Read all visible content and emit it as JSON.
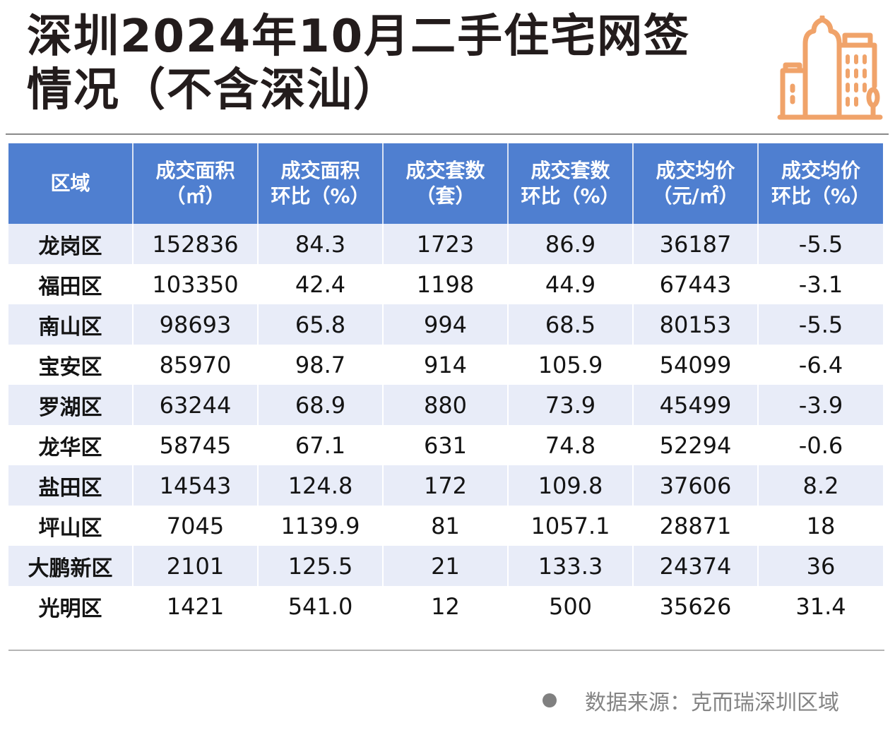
{
  "header": {
    "title_line1": "深圳2024年10月二手住宅网签",
    "title_line2": "情况（不含深汕）",
    "logo_icon": "city-buildings-icon",
    "logo_color": "#f0a36a"
  },
  "table": {
    "columns": [
      {
        "line1": "区域",
        "line2": ""
      },
      {
        "line1": "成交面积",
        "line2": "（㎡）"
      },
      {
        "line1": "成交面积",
        "line2": "环比（%）"
      },
      {
        "line1": "成交套数",
        "line2": "（套）"
      },
      {
        "line1": "成交套数",
        "line2": "环比（%）"
      },
      {
        "line1": "成交均价",
        "line2": "（元/㎡）"
      },
      {
        "line1": "成交均价",
        "line2": "环比（%）"
      }
    ],
    "rows": [
      [
        "龙岗区",
        "152836",
        "84.3",
        "1723",
        "86.9",
        "36187",
        "-5.5"
      ],
      [
        "福田区",
        "103350",
        "42.4",
        "1198",
        "44.9",
        "67443",
        "-3.1"
      ],
      [
        "南山区",
        "98693",
        "65.8",
        "994",
        "68.5",
        "80153",
        "-5.5"
      ],
      [
        "宝安区",
        "85970",
        "98.7",
        "914",
        "105.9",
        "54099",
        "-6.4"
      ],
      [
        "罗湖区",
        "63244",
        "68.9",
        "880",
        "73.9",
        "45499",
        "-3.9"
      ],
      [
        "龙华区",
        "58745",
        "67.1",
        "631",
        "74.8",
        "52294",
        "-0.6"
      ],
      [
        "盐田区",
        "14543",
        "124.8",
        "172",
        "109.8",
        "37606",
        "8.2"
      ],
      [
        "坪山区",
        "7045",
        "1139.9",
        "81",
        "1057.1",
        "28871",
        "18"
      ],
      [
        "大鹏新区",
        "2101",
        "125.5",
        "21",
        "133.3",
        "24374",
        "36"
      ],
      [
        "光明区",
        "1421",
        "541.0",
        "12",
        "500",
        "35626",
        "31.4"
      ]
    ],
    "header_color": "#4f7fd0",
    "stripe_color": "#e8ecf8"
  },
  "footer": {
    "source": "数据来源：克而瑞深圳区域"
  },
  "chart_data": {
    "type": "table",
    "title": "深圳2024年10月二手住宅网签情况（不含深汕）",
    "columns": [
      "区域",
      "成交面积（㎡）",
      "成交面积环比（%）",
      "成交套数（套）",
      "成交套数环比（%）",
      "成交均价（元/㎡）",
      "成交均价环比（%）"
    ],
    "rows": [
      [
        "龙岗区",
        152836,
        84.3,
        1723,
        86.9,
        36187,
        -5.5
      ],
      [
        "福田区",
        103350,
        42.4,
        1198,
        44.9,
        67443,
        -3.1
      ],
      [
        "南山区",
        98693,
        65.8,
        994,
        68.5,
        80153,
        -5.5
      ],
      [
        "宝安区",
        85970,
        98.7,
        914,
        105.9,
        54099,
        -6.4
      ],
      [
        "罗湖区",
        63244,
        68.9,
        880,
        73.9,
        45499,
        -3.9
      ],
      [
        "龙华区",
        58745,
        67.1,
        631,
        74.8,
        52294,
        -0.6
      ],
      [
        "盐田区",
        14543,
        124.8,
        172,
        109.8,
        37606,
        8.2
      ],
      [
        "坪山区",
        7045,
        1139.9,
        81,
        1057.1,
        28871,
        18
      ],
      [
        "大鹏新区",
        2101,
        125.5,
        21,
        133.3,
        24374,
        36
      ],
      [
        "光明区",
        1421,
        541.0,
        12,
        500,
        35626,
        31.4
      ]
    ],
    "source": "数据来源：克而瑞深圳区域"
  }
}
